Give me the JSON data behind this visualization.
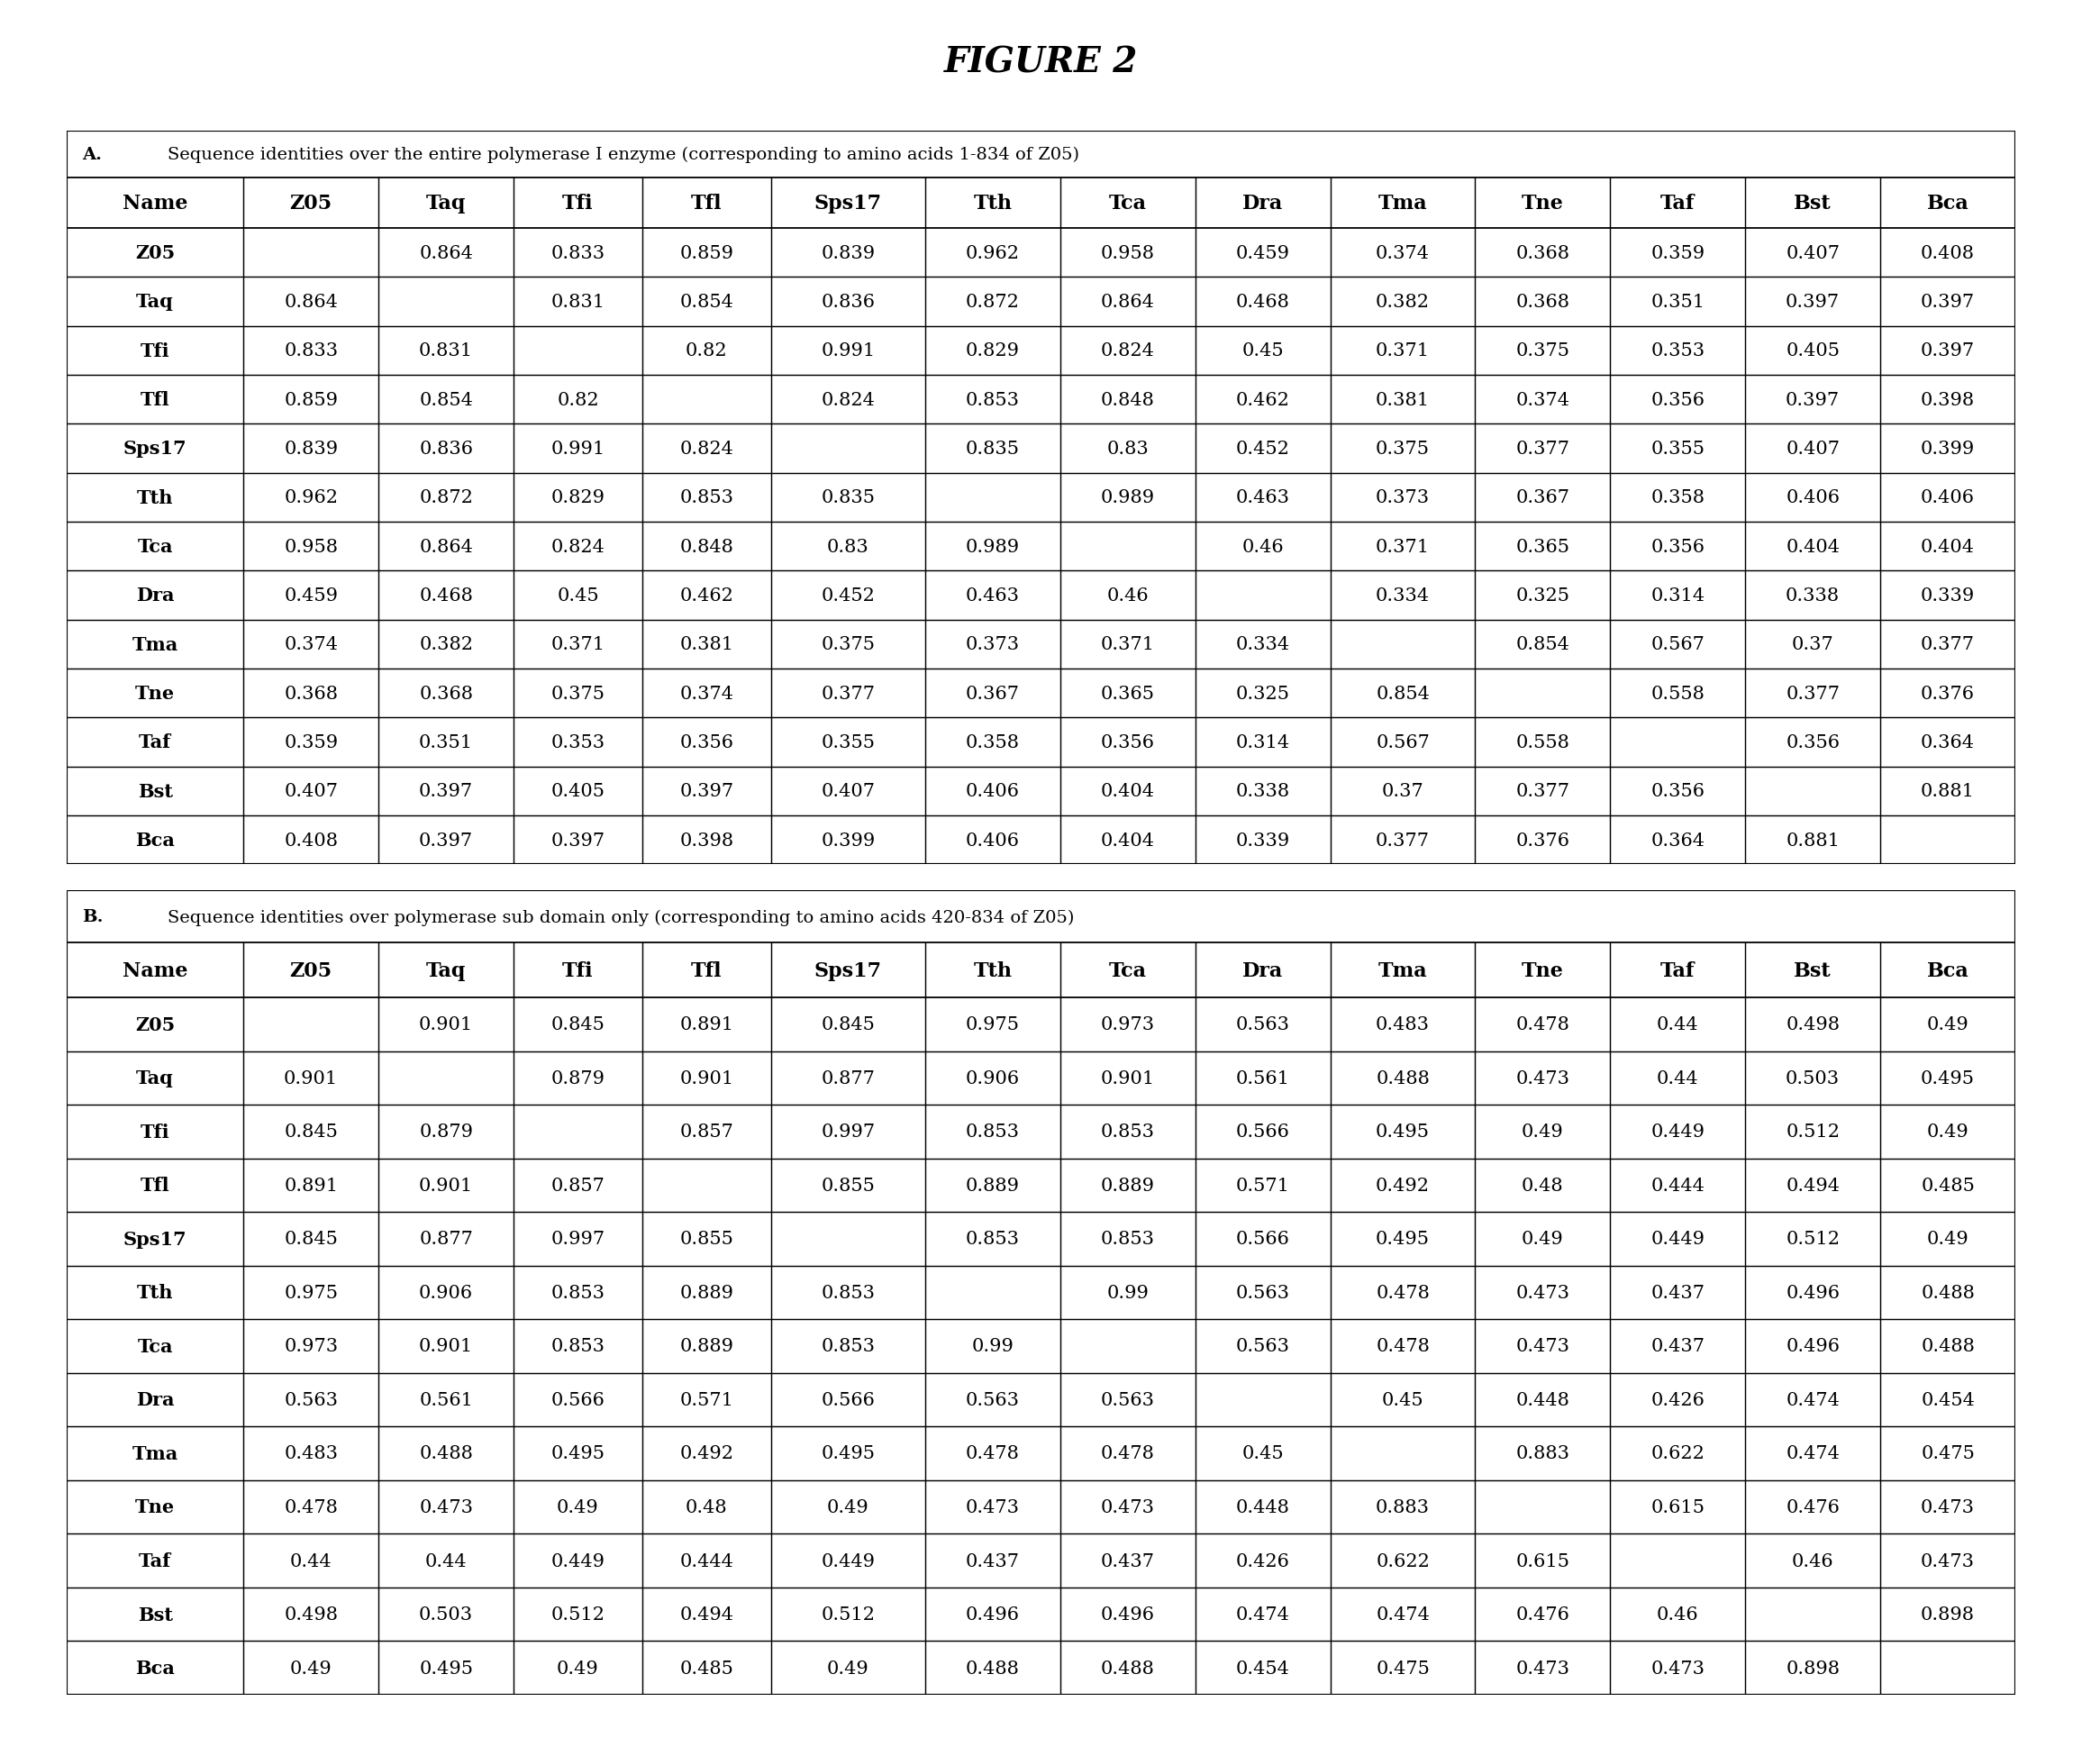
{
  "title": "FIGURE 2",
  "table_A_header_A": "A.",
  "table_A_header_text": "Sequence identities over the entire polymerase I enzyme (corresponding to amino acids 1-834 of Z05)",
  "table_B_header_A": "B.",
  "table_B_header_text": "Sequence identities over polymerase sub domain only (corresponding to amino acids 420-834 of Z05)",
  "columns": [
    "Name",
    "Z05",
    "Taq",
    "Tfi",
    "Tfl",
    "Sps17",
    "Tth",
    "Tca",
    "Dra",
    "Tma",
    "Tne",
    "Taf",
    "Bst",
    "Bca"
  ],
  "table_A_rows": [
    [
      "Z05",
      "",
      "0.864",
      "0.833",
      "0.859",
      "0.839",
      "0.962",
      "0.958",
      "0.459",
      "0.374",
      "0.368",
      "0.359",
      "0.407",
      "0.408"
    ],
    [
      "Taq",
      "0.864",
      "",
      "0.831",
      "0.854",
      "0.836",
      "0.872",
      "0.864",
      "0.468",
      "0.382",
      "0.368",
      "0.351",
      "0.397",
      "0.397"
    ],
    [
      "Tfi",
      "0.833",
      "0.831",
      "",
      "0.82",
      "0.991",
      "0.829",
      "0.824",
      "0.45",
      "0.371",
      "0.375",
      "0.353",
      "0.405",
      "0.397"
    ],
    [
      "Tfl",
      "0.859",
      "0.854",
      "0.82",
      "",
      "0.824",
      "0.853",
      "0.848",
      "0.462",
      "0.381",
      "0.374",
      "0.356",
      "0.397",
      "0.398"
    ],
    [
      "Sps17",
      "0.839",
      "0.836",
      "0.991",
      "0.824",
      "",
      "0.835",
      "0.83",
      "0.452",
      "0.375",
      "0.377",
      "0.355",
      "0.407",
      "0.399"
    ],
    [
      "Tth",
      "0.962",
      "0.872",
      "0.829",
      "0.853",
      "0.835",
      "",
      "0.989",
      "0.463",
      "0.373",
      "0.367",
      "0.358",
      "0.406",
      "0.406"
    ],
    [
      "Tca",
      "0.958",
      "0.864",
      "0.824",
      "0.848",
      "0.83",
      "0.989",
      "",
      "0.46",
      "0.371",
      "0.365",
      "0.356",
      "0.404",
      "0.404"
    ],
    [
      "Dra",
      "0.459",
      "0.468",
      "0.45",
      "0.462",
      "0.452",
      "0.463",
      "0.46",
      "",
      "0.334",
      "0.325",
      "0.314",
      "0.338",
      "0.339"
    ],
    [
      "Tma",
      "0.374",
      "0.382",
      "0.371",
      "0.381",
      "0.375",
      "0.373",
      "0.371",
      "0.334",
      "",
      "0.854",
      "0.567",
      "0.37",
      "0.377"
    ],
    [
      "Tne",
      "0.368",
      "0.368",
      "0.375",
      "0.374",
      "0.377",
      "0.367",
      "0.365",
      "0.325",
      "0.854",
      "",
      "0.558",
      "0.377",
      "0.376"
    ],
    [
      "Taf",
      "0.359",
      "0.351",
      "0.353",
      "0.356",
      "0.355",
      "0.358",
      "0.356",
      "0.314",
      "0.567",
      "0.558",
      "",
      "0.356",
      "0.364"
    ],
    [
      "Bst",
      "0.407",
      "0.397",
      "0.405",
      "0.397",
      "0.407",
      "0.406",
      "0.404",
      "0.338",
      "0.37",
      "0.377",
      "0.356",
      "",
      "0.881"
    ],
    [
      "Bca",
      "0.408",
      "0.397",
      "0.397",
      "0.398",
      "0.399",
      "0.406",
      "0.404",
      "0.339",
      "0.377",
      "0.376",
      "0.364",
      "0.881",
      ""
    ]
  ],
  "table_B_rows": [
    [
      "Z05",
      "",
      "0.901",
      "0.845",
      "0.891",
      "0.845",
      "0.975",
      "0.973",
      "0.563",
      "0.483",
      "0.478",
      "0.44",
      "0.498",
      "0.49"
    ],
    [
      "Taq",
      "0.901",
      "",
      "0.879",
      "0.901",
      "0.877",
      "0.906",
      "0.901",
      "0.561",
      "0.488",
      "0.473",
      "0.44",
      "0.503",
      "0.495"
    ],
    [
      "Tfi",
      "0.845",
      "0.879",
      "",
      "0.857",
      "0.997",
      "0.853",
      "0.853",
      "0.566",
      "0.495",
      "0.49",
      "0.449",
      "0.512",
      "0.49"
    ],
    [
      "Tfl",
      "0.891",
      "0.901",
      "0.857",
      "",
      "0.855",
      "0.889",
      "0.889",
      "0.571",
      "0.492",
      "0.48",
      "0.444",
      "0.494",
      "0.485"
    ],
    [
      "Sps17",
      "0.845",
      "0.877",
      "0.997",
      "0.855",
      "",
      "0.853",
      "0.853",
      "0.566",
      "0.495",
      "0.49",
      "0.449",
      "0.512",
      "0.49"
    ],
    [
      "Tth",
      "0.975",
      "0.906",
      "0.853",
      "0.889",
      "0.853",
      "",
      "0.99",
      "0.563",
      "0.478",
      "0.473",
      "0.437",
      "0.496",
      "0.488"
    ],
    [
      "Tca",
      "0.973",
      "0.901",
      "0.853",
      "0.889",
      "0.853",
      "0.99",
      "",
      "0.563",
      "0.478",
      "0.473",
      "0.437",
      "0.496",
      "0.488"
    ],
    [
      "Dra",
      "0.563",
      "0.561",
      "0.566",
      "0.571",
      "0.566",
      "0.563",
      "0.563",
      "",
      "0.45",
      "0.448",
      "0.426",
      "0.474",
      "0.454"
    ],
    [
      "Tma",
      "0.483",
      "0.488",
      "0.495",
      "0.492",
      "0.495",
      "0.478",
      "0.478",
      "0.45",
      "",
      "0.883",
      "0.622",
      "0.474",
      "0.475"
    ],
    [
      "Tne",
      "0.478",
      "0.473",
      "0.49",
      "0.48",
      "0.49",
      "0.473",
      "0.473",
      "0.448",
      "0.883",
      "",
      "0.615",
      "0.476",
      "0.473"
    ],
    [
      "Taf",
      "0.44",
      "0.44",
      "0.449",
      "0.444",
      "0.449",
      "0.437",
      "0.437",
      "0.426",
      "0.622",
      "0.615",
      "",
      "0.46",
      "0.473"
    ],
    [
      "Bst",
      "0.498",
      "0.503",
      "0.512",
      "0.494",
      "0.512",
      "0.496",
      "0.496",
      "0.474",
      "0.474",
      "0.476",
      "0.46",
      "",
      "0.898"
    ],
    [
      "Bca",
      "0.49",
      "0.495",
      "0.49",
      "0.485",
      "0.49",
      "0.488",
      "0.488",
      "0.454",
      "0.475",
      "0.473",
      "0.473",
      "0.898",
      ""
    ]
  ],
  "bg_color": "#ffffff",
  "line_color": "#000000",
  "title_fontsize": 28,
  "header_fontsize": 14,
  "col_fontsize": 16,
  "data_fontsize": 15
}
